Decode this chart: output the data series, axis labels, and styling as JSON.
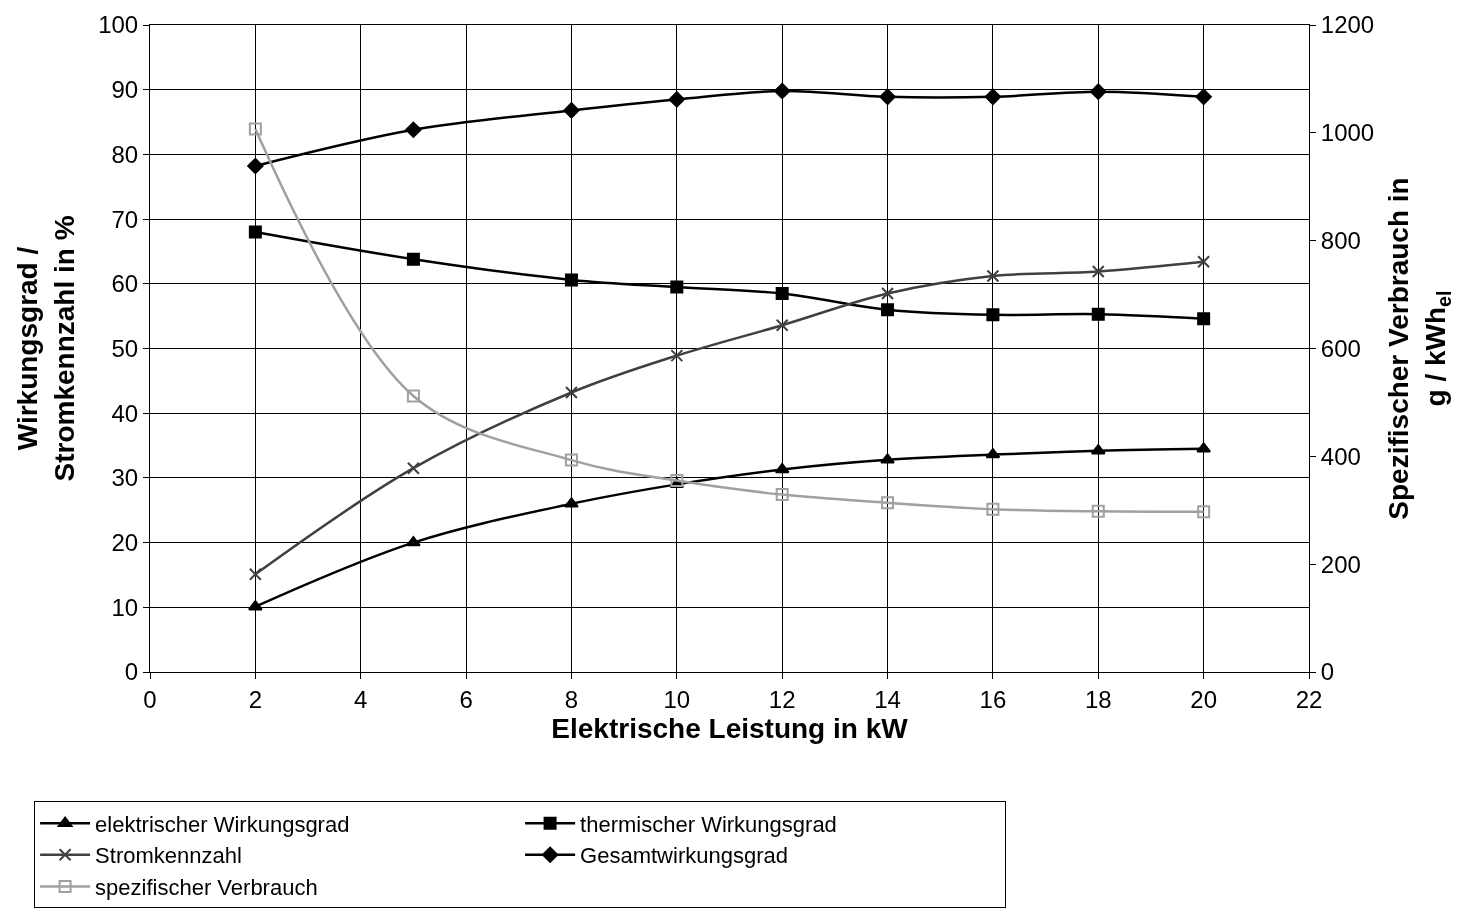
{
  "chart_data": {
    "type": "line",
    "xlabel": "Elektrische Leistung in kW",
    "ylabel": "Wirkungsgrad /\nStromkennzahl in %",
    "y2label": "Spezifischer Verbrauch in\ng / kWh$_{el}$",
    "x": [
      2,
      5,
      8,
      10,
      12,
      14,
      16,
      18,
      20
    ],
    "xlim": [
      0,
      22
    ],
    "xticks": [
      0,
      2,
      4,
      6,
      8,
      10,
      12,
      14,
      16,
      18,
      20,
      22
    ],
    "ylim": [
      0,
      100
    ],
    "yticks": [
      0,
      10,
      20,
      30,
      40,
      50,
      60,
      70,
      80,
      90,
      100
    ],
    "y2lim": [
      0,
      1200
    ],
    "y2ticks": [
      0,
      200,
      400,
      600,
      800,
      1000,
      1200
    ],
    "grid": true,
    "legend": "bottom",
    "series": [
      {
        "name": "elektrischer Wirkungsgrad",
        "color": "#000000",
        "marker": "triangle",
        "values": [
          10.1,
          20.0,
          26.0,
          29.0,
          31.3,
          32.8,
          33.6,
          34.2,
          34.5
        ]
      },
      {
        "name": "thermischer Wirkungsgrad",
        "color": "#000000",
        "marker": "square",
        "values": [
          68.0,
          63.8,
          60.6,
          59.5,
          58.5,
          56.0,
          55.2,
          55.3,
          54.6
        ]
      },
      {
        "name": "Stromkennzahl",
        "color": "#404040",
        "marker": "cross",
        "values": [
          15.1,
          31.5,
          43.2,
          48.9,
          53.6,
          58.5,
          61.2,
          61.9,
          63.4
        ]
      },
      {
        "name": "Gesamtwirkungsgrad",
        "color": "#000000",
        "marker": "diamond",
        "values": [
          78.2,
          83.8,
          86.8,
          88.5,
          89.8,
          88.9,
          88.9,
          89.7,
          88.9
        ]
      },
      {
        "name": "spezifischer Verbrauch",
        "color": "#a0a0a0",
        "marker": "square-open",
        "axis": "y2",
        "values": [
          1007,
          512,
          393,
          355,
          329,
          314,
          302,
          298,
          297
        ]
      }
    ]
  }
}
